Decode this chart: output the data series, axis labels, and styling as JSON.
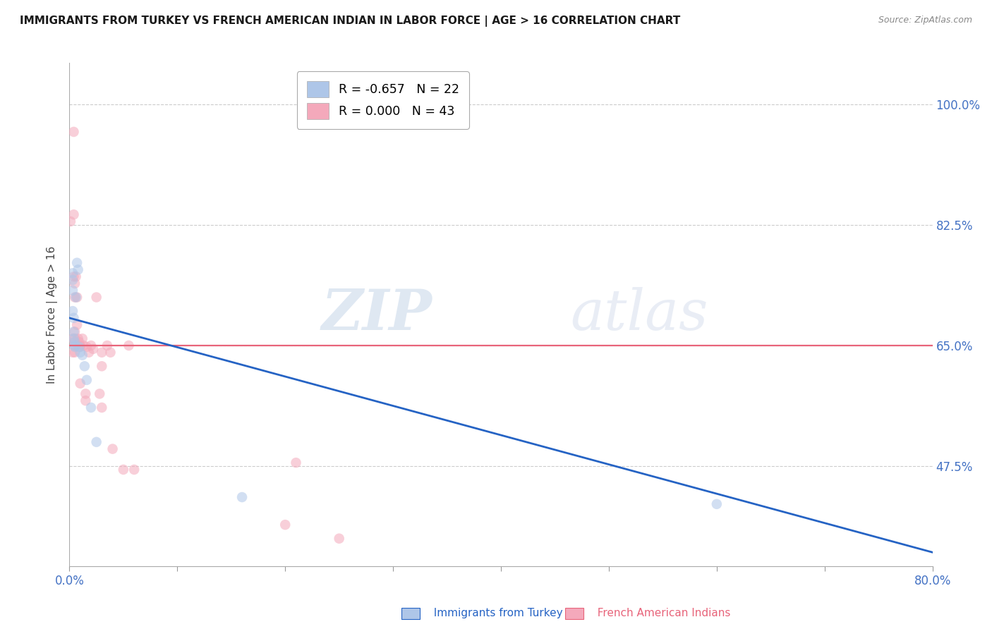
{
  "title": "IMMIGRANTS FROM TURKEY VS FRENCH AMERICAN INDIAN IN LABOR FORCE | AGE > 16 CORRELATION CHART",
  "source": "Source: ZipAtlas.com",
  "ylabel": "In Labor Force | Age > 16",
  "watermark": "ZIPatlas",
  "legend_blue_r": "-0.657",
  "legend_blue_n": "22",
  "legend_pink_r": "0.000",
  "legend_pink_n": "43",
  "legend_blue_label": "Immigrants from Turkey",
  "legend_pink_label": "French American Indians",
  "xlim": [
    0.0,
    0.8
  ],
  "ylim": [
    0.33,
    1.06
  ],
  "yticks": [
    0.475,
    0.65,
    0.825,
    1.0
  ],
  "ytick_labels": [
    "47.5%",
    "65.0%",
    "82.5%",
    "100.0%"
  ],
  "xticks": [
    0.0,
    0.1,
    0.2,
    0.3,
    0.4,
    0.5,
    0.6,
    0.7,
    0.8
  ],
  "xtick_labels": [
    "0.0%",
    "",
    "",
    "",
    "",
    "",
    "",
    "",
    "80.0%"
  ],
  "blue_x": [
    0.003,
    0.003,
    0.003,
    0.003,
    0.004,
    0.004,
    0.004,
    0.005,
    0.005,
    0.005,
    0.006,
    0.007,
    0.008,
    0.009,
    0.01,
    0.012,
    0.014,
    0.016,
    0.02,
    0.025,
    0.16,
    0.6
  ],
  "blue_y": [
    0.755,
    0.745,
    0.73,
    0.7,
    0.69,
    0.67,
    0.66,
    0.655,
    0.65,
    0.648,
    0.72,
    0.77,
    0.76,
    0.648,
    0.64,
    0.636,
    0.62,
    0.6,
    0.56,
    0.51,
    0.43,
    0.42
  ],
  "pink_x": [
    0.001,
    0.003,
    0.003,
    0.004,
    0.004,
    0.004,
    0.005,
    0.005,
    0.005,
    0.005,
    0.005,
    0.005,
    0.005,
    0.006,
    0.007,
    0.007,
    0.008,
    0.009,
    0.01,
    0.01,
    0.01,
    0.012,
    0.013,
    0.015,
    0.015,
    0.016,
    0.018,
    0.02,
    0.022,
    0.025,
    0.028,
    0.03,
    0.03,
    0.03,
    0.035,
    0.038,
    0.04,
    0.05,
    0.055,
    0.06,
    0.2,
    0.21,
    0.25
  ],
  "pink_y": [
    0.83,
    0.66,
    0.64,
    0.96,
    0.84,
    0.75,
    0.74,
    0.72,
    0.67,
    0.66,
    0.655,
    0.65,
    0.64,
    0.75,
    0.72,
    0.68,
    0.66,
    0.655,
    0.65,
    0.648,
    0.595,
    0.66,
    0.65,
    0.58,
    0.57,
    0.648,
    0.64,
    0.65,
    0.645,
    0.72,
    0.58,
    0.56,
    0.64,
    0.62,
    0.65,
    0.64,
    0.5,
    0.47,
    0.65,
    0.47,
    0.39,
    0.48,
    0.37
  ],
  "blue_color": "#aec6e8",
  "pink_color": "#f4a9bb",
  "blue_line_color": "#2563c4",
  "pink_line_color": "#e8647a",
  "title_color": "#1a1a1a",
  "source_color": "#888888",
  "axis_label_color": "#444444",
  "tick_color": "#4472c4",
  "grid_color": "#cccccc",
  "background_color": "#ffffff",
  "blue_trendline_x": [
    0.0,
    0.8
  ],
  "blue_trendline_y": [
    0.69,
    0.35
  ],
  "pink_trendline_x": [
    0.0,
    0.8
  ],
  "pink_trendline_y": [
    0.65,
    0.65
  ],
  "marker_size": 110,
  "marker_alpha": 0.55
}
